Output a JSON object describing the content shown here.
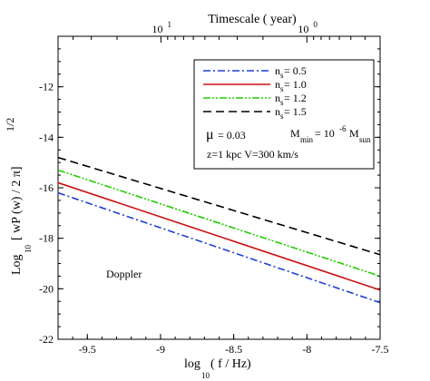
{
  "chart_data": {
    "type": "line",
    "top_axis": {
      "title": "Timescale ( year)",
      "ticks": [
        {
          "base": "10",
          "exp": "1",
          "x_value": -8.997
        },
        {
          "base": "10",
          "exp": "0",
          "x_value": -8.0
        }
      ]
    },
    "xaxis": {
      "title_main": "log",
      "title_sub": "10",
      "title_rest": "( f / Hz)",
      "xlim": [
        -9.7,
        -7.5
      ],
      "ticks": [
        {
          "value": -9.5,
          "label": "-9.5"
        },
        {
          "value": -9.0,
          "label": "-9"
        },
        {
          "value": -8.5,
          "label": "-8.5"
        },
        {
          "value": -8.0,
          "label": "-8"
        },
        {
          "value": -7.5,
          "label": "-7.5"
        }
      ]
    },
    "yaxis": {
      "title_main": "Log",
      "title_sub": "10",
      "title_rest": "[ wP (w) / 2 π]",
      "title_sup": "1/2",
      "ylim": [
        -22,
        -10
      ],
      "ticks": [
        {
          "value": -22,
          "label": "-22"
        },
        {
          "value": -20,
          "label": "-20"
        },
        {
          "value": -18,
          "label": "-18"
        },
        {
          "value": -16,
          "label": "-16"
        },
        {
          "value": -14,
          "label": "-14"
        },
        {
          "value": -12,
          "label": "-12"
        }
      ]
    },
    "series": [
      {
        "name": "n_s= 0.5",
        "label_base": "n",
        "label_sub": "s",
        "label_rest": "= 0.5",
        "color": "#1f3fd6",
        "dash": "8,3,2,3",
        "x": [
          -9.7,
          -7.5
        ],
        "y": [
          -16.2,
          -20.55
        ]
      },
      {
        "name": "n_s= 1.0",
        "label_base": "n",
        "label_sub": "s",
        "label_rest": "= 1.0",
        "color": "#cc1111",
        "dash": "",
        "x": [
          -9.7,
          -7.5
        ],
        "y": [
          -15.8,
          -20.05
        ]
      },
      {
        "name": "n_s= 1.2",
        "label_base": "n",
        "label_sub": "s",
        "label_rest": "= 1.2",
        "color": "#22cc00",
        "dash": "8,2,2,2,2,2",
        "x": [
          -9.7,
          -7.5
        ],
        "y": [
          -15.3,
          -19.5
        ]
      },
      {
        "name": "n_s= 1.5",
        "label_base": "n",
        "label_sub": "s",
        "label_rest": "= 1.5",
        "color": "#000000",
        "dash": "9,5",
        "x": [
          -9.7,
          -7.5
        ],
        "y": [
          -14.8,
          -18.65
        ]
      }
    ],
    "params": {
      "mu_symbol": "μ",
      "mu_value": "= 0.03",
      "m_base": "M",
      "m_sub": "min",
      "m_eq": "= 10",
      "m_exp": "-6",
      "m_unit": "M",
      "m_unit_sub": "sun",
      "line2": "z=1 kpc  V=300 km/s"
    },
    "annotation": "Doppler",
    "legend_position": "top-right"
  }
}
